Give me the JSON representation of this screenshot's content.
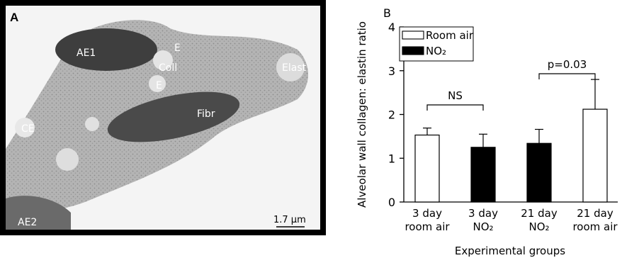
{
  "panel_a": {
    "panel_label": "A",
    "labels": {
      "ae1": "AE1",
      "e_top": "E",
      "coll": "Coll",
      "e_bottom": "E",
      "elast": "Elast",
      "fibr": "Fibr",
      "ce": "CE",
      "ae2": "AE2"
    },
    "scale_bar_text": "1.7 μm"
  },
  "chart_data": {
    "type": "bar",
    "panel_label": "B",
    "categories": [
      [
        "3 day",
        "room air"
      ],
      [
        "3 day",
        "NO₂"
      ],
      [
        "21 day",
        "NO₂"
      ],
      [
        "21 day",
        "room air"
      ]
    ],
    "values": [
      1.53,
      1.25,
      1.34,
      2.12
    ],
    "errors": [
      0.16,
      0.3,
      0.32,
      0.68
    ],
    "bar_groups": [
      "Room air",
      "NO₂",
      "NO₂",
      "Room air"
    ],
    "legend": [
      {
        "name": "Room air",
        "color": "#ffffff"
      },
      {
        "name": "NO₂",
        "color": "#000000"
      }
    ],
    "legend_position": "top-left",
    "ylabel": "Alveolar wall collagen: elastin ratio",
    "xlabel": "Experimental groups",
    "ylim": [
      0,
      4
    ],
    "yticks": [
      0,
      1,
      2,
      3,
      4
    ],
    "grid": false,
    "annotations": [
      {
        "text": "NS",
        "between": [
          0,
          1
        ]
      },
      {
        "text": "p=0.03",
        "between": [
          2,
          3
        ]
      }
    ]
  }
}
